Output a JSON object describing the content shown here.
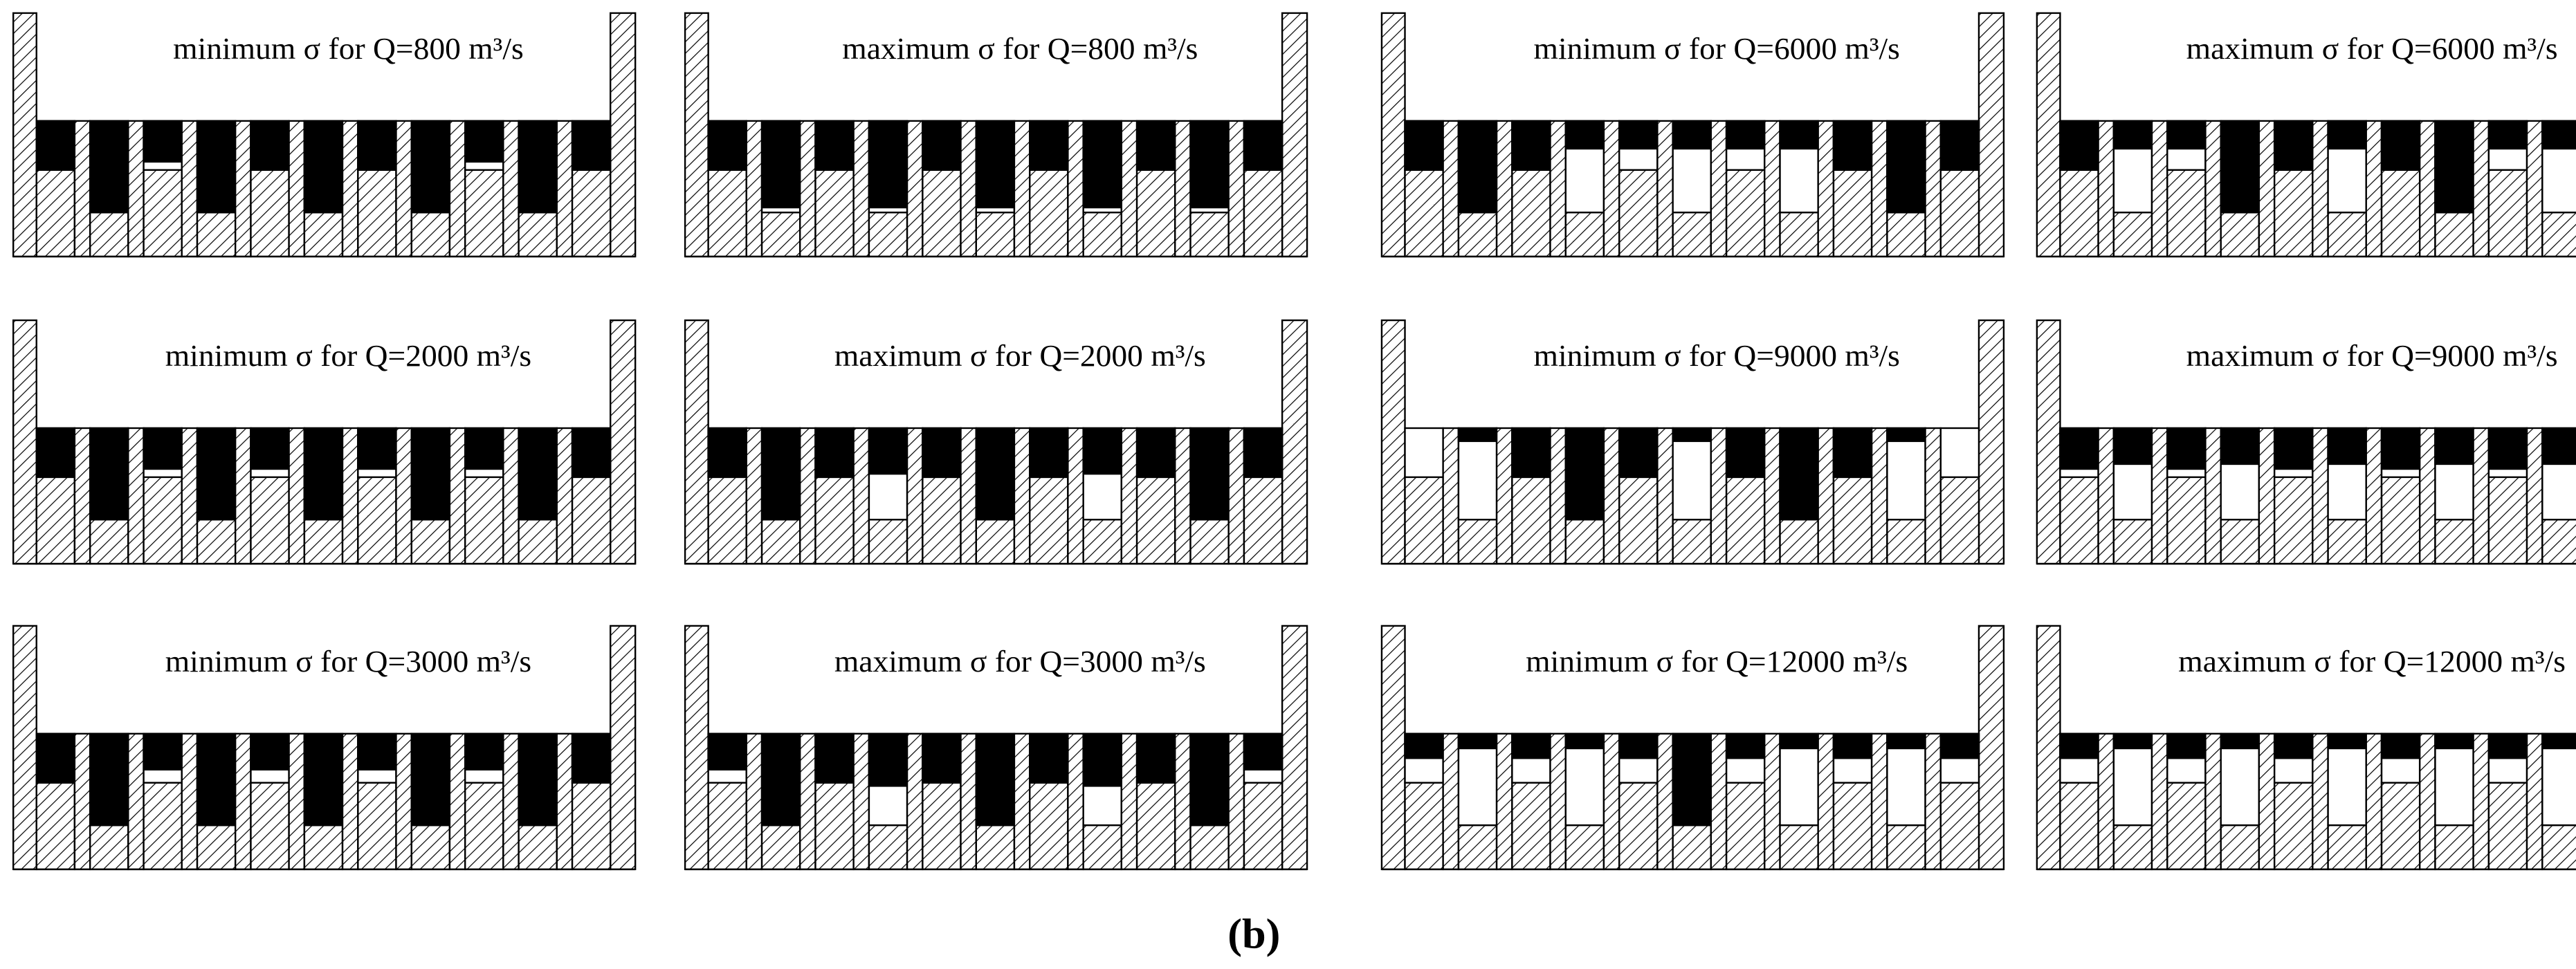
{
  "panels": [
    {
      "title": "minimum σ for Q=800 m³/s"
    },
    {
      "title": "maximum σ for Q=800 m³/s"
    },
    {
      "title": "minimum σ for Q=6000 m³/s"
    },
    {
      "title": "maximum σ for Q=6000 m³/s"
    },
    {
      "title": "minimum σ for Q=2000 m³/s"
    },
    {
      "title": "maximum σ for Q=2000 m³/s"
    },
    {
      "title": "minimum σ for Q=9000 m³/s"
    },
    {
      "title": "maximum σ for Q=9000 m³/s"
    },
    {
      "title": "minimum σ for Q=3000 m³/s"
    },
    {
      "title": "maximum σ for Q=3000 m³/s"
    },
    {
      "title": "minimum σ for Q=12000 m³/s"
    },
    {
      "title": "maximum σ for Q=12000 m³/s"
    }
  ],
  "label": "(b)"
}
